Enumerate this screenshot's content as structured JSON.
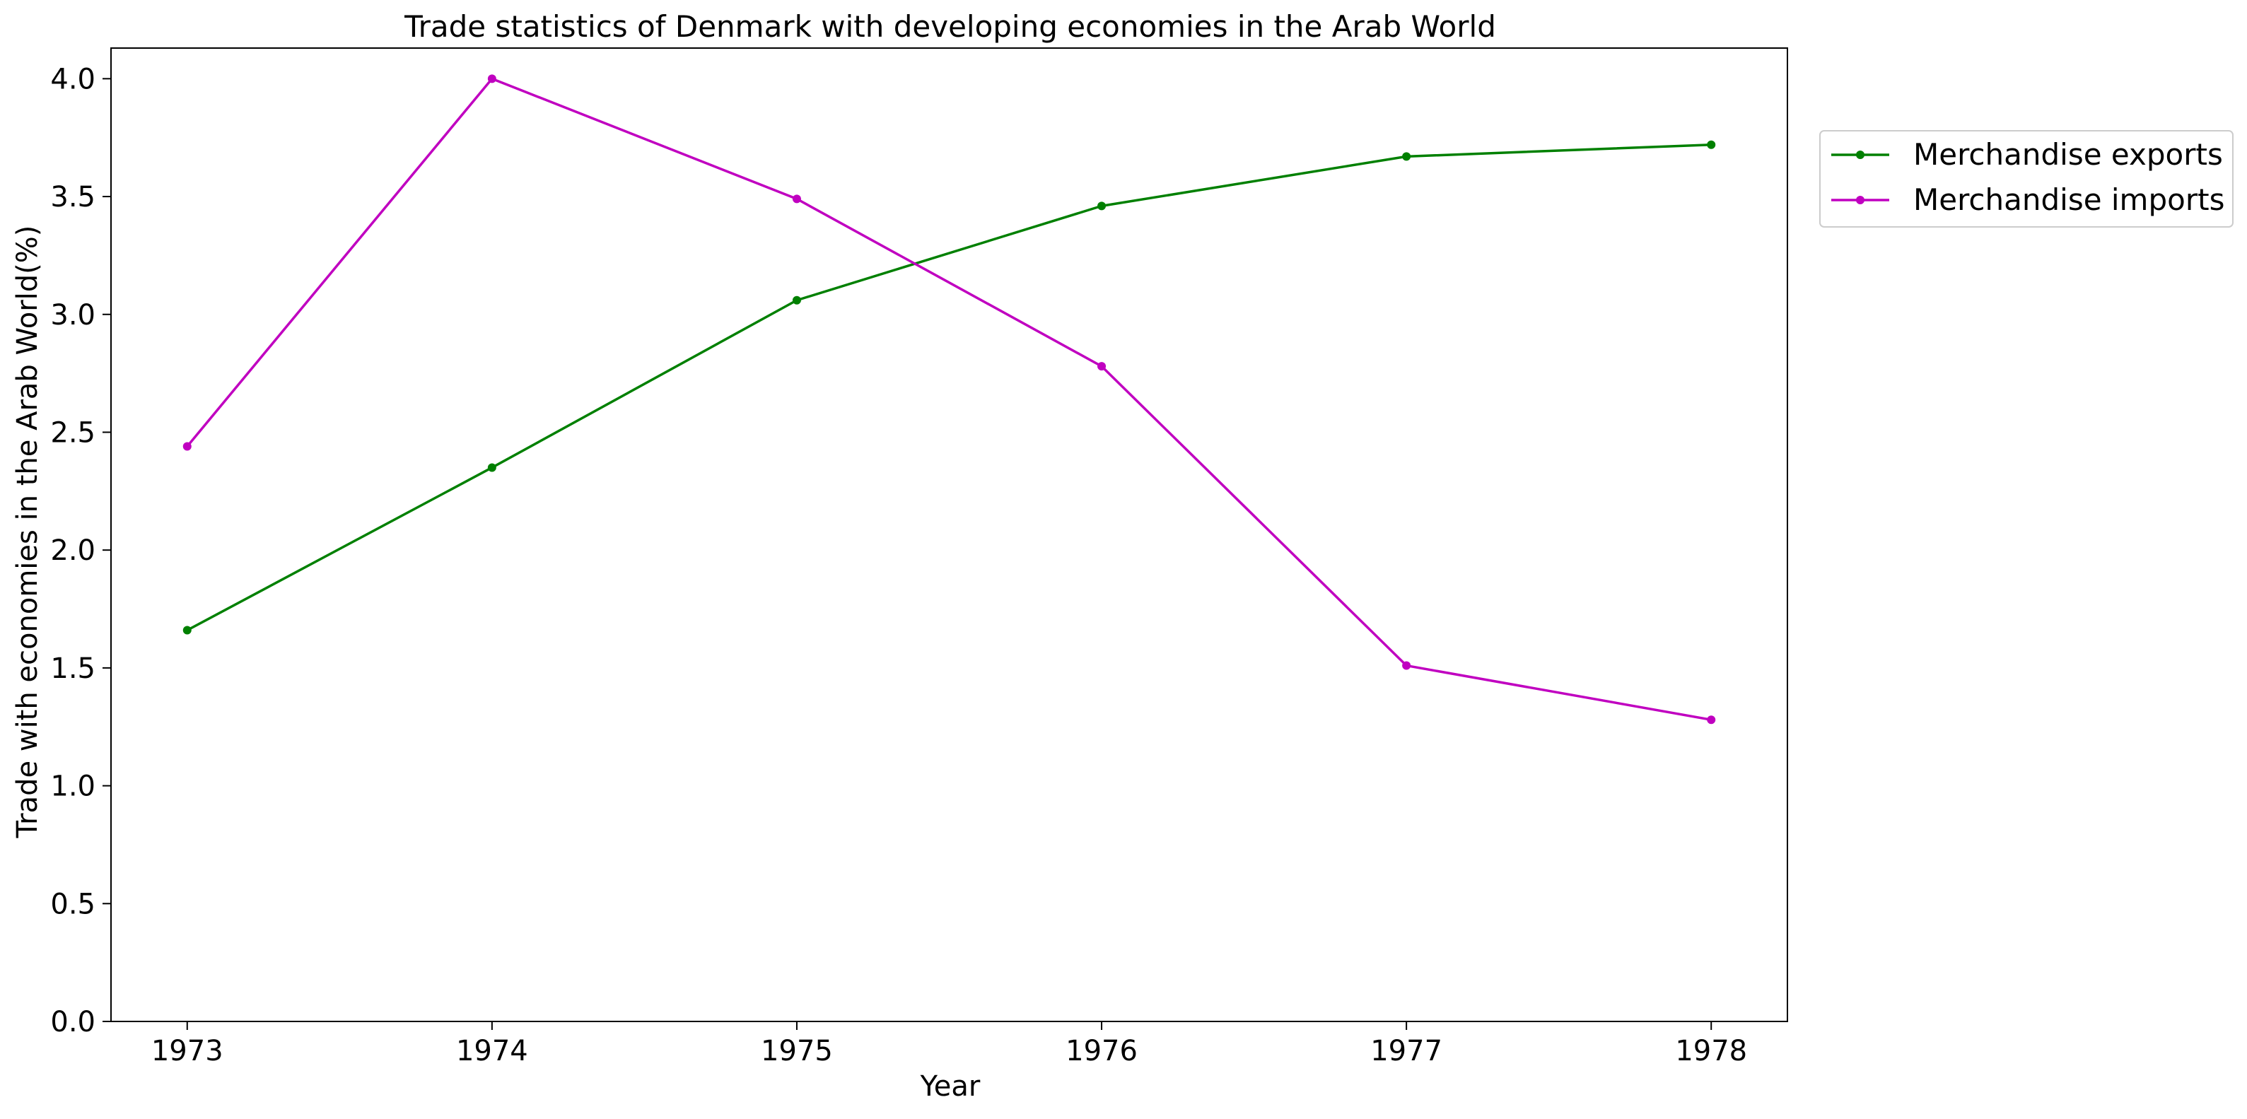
{
  "chart_data": {
    "type": "line",
    "title": "Trade statistics of Denmark with developing economies in the Arab World",
    "xlabel": "Year",
    "ylabel": "Trade with economies in the Arab World(%)",
    "x": [
      1973,
      1974,
      1975,
      1976,
      1977,
      1978
    ],
    "x_tick_labels": [
      "1973",
      "1974",
      "1975",
      "1976",
      "1977",
      "1978"
    ],
    "y_tick_labels": [
      "0.0",
      "0.5",
      "1.0",
      "1.5",
      "2.0",
      "2.5",
      "3.0",
      "3.5",
      "4.0"
    ],
    "y_ticks": [
      0.0,
      0.5,
      1.0,
      1.5,
      2.0,
      2.5,
      3.0,
      3.5,
      4.0
    ],
    "ylim": [
      0.0,
      4.13
    ],
    "xlim": [
      1972.75,
      1978.25
    ],
    "grid": false,
    "legend_position": "outside upper right",
    "series": [
      {
        "name": "Merchandise exports",
        "color": "#008000",
        "marker": "circle",
        "values": [
          1.66,
          2.35,
          3.06,
          3.46,
          3.67,
          3.72
        ]
      },
      {
        "name": "Merchandise imports",
        "color": "#c000c0",
        "marker": "circle",
        "values": [
          2.44,
          4.0,
          3.49,
          2.78,
          1.51,
          1.28
        ]
      }
    ]
  }
}
